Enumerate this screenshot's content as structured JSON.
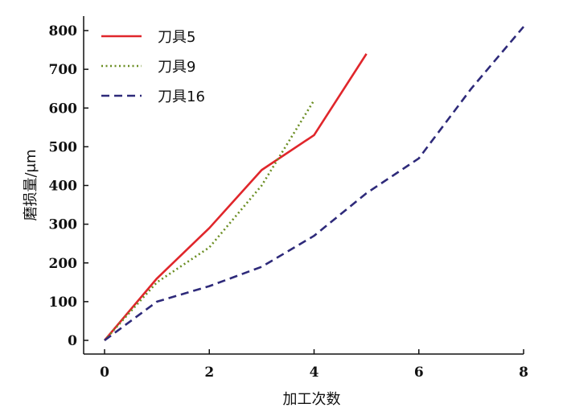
{
  "chart_data": {
    "type": "line",
    "title": "",
    "xlabel": "加工次数",
    "ylabel": "磨损量/μm",
    "xlim": [
      0,
      8
    ],
    "ylim": [
      0,
      800
    ],
    "xticks": [
      0,
      2,
      4,
      6,
      8
    ],
    "yticks": [
      0,
      100,
      200,
      300,
      400,
      500,
      600,
      700,
      800
    ],
    "grid": false,
    "legend_position": "top-left",
    "series": [
      {
        "name": "刀具5",
        "color": "#e0262b",
        "style": "solid",
        "x": [
          0,
          1,
          2,
          3,
          4,
          5
        ],
        "y": [
          0,
          160,
          290,
          440,
          530,
          740
        ]
      },
      {
        "name": "刀具9",
        "color": "#6b8e23",
        "style": "dotted",
        "x": [
          0,
          1,
          2,
          3,
          4
        ],
        "y": [
          0,
          150,
          240,
          400,
          620
        ]
      },
      {
        "name": "刀具16",
        "color": "#2e2a7a",
        "style": "dashed",
        "x": [
          0,
          1,
          2,
          3,
          4,
          5,
          6,
          7,
          8
        ],
        "y": [
          0,
          100,
          140,
          190,
          270,
          380,
          470,
          650,
          810
        ]
      }
    ]
  }
}
